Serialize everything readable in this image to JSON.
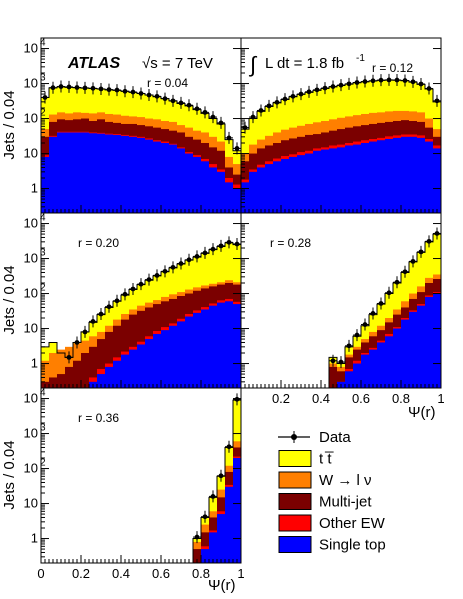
{
  "chart_data": {
    "type": "bar",
    "experiment_label": "ATLAS",
    "energy_label": "√s = 7 TeV",
    "lumi_prefix": "∫",
    "lumi_label": "L dt = 1.8 fb",
    "lumi_superscript": "-1",
    "ylabel": "Jets / 0.04",
    "xlabel": "Ψ(r)",
    "y_log_scale": true,
    "x_range": [
      0,
      1
    ],
    "y_range": [
      0.2,
      20000
    ],
    "x_tick_labels": [
      "0",
      "0.2",
      "0.4",
      "0.6",
      "0.8",
      "1"
    ],
    "y_tick_labels": [
      "1",
      "10",
      "10",
      "10",
      "10"
    ],
    "y_tick_exponents": [
      "",
      "",
      "2",
      "3",
      "4"
    ],
    "colors": {
      "ttbar": "#ffff00",
      "wlnu": "#ff7f00",
      "multijet": "#7b0000",
      "otherew": "#ff0000",
      "singletop": "#0000ff"
    },
    "legend": [
      {
        "key": "data",
        "label": "Data"
      },
      {
        "key": "ttbar",
        "label": "t t̅"
      },
      {
        "key": "wlnu",
        "label": "W → l ν"
      },
      {
        "key": "multijet",
        "label": "Multi-jet"
      },
      {
        "key": "otherew",
        "label": "Other EW"
      },
      {
        "key": "singletop",
        "label": "Single top"
      }
    ],
    "panels": [
      {
        "r_label": "r = 0.04",
        "bins": [
          0.04,
          0.08,
          0.12,
          0.16,
          0.2,
          0.24,
          0.28,
          0.32,
          0.36,
          0.4,
          0.44,
          0.48,
          0.52,
          0.56,
          0.6,
          0.64,
          0.68,
          0.72,
          0.76,
          0.8,
          0.84,
          0.88,
          0.92,
          0.96,
          1.0
        ],
        "singletop": [
          8,
          30,
          40,
          40,
          40,
          40,
          38,
          37,
          35,
          34,
          32,
          30,
          28,
          25,
          22,
          20,
          18,
          14,
          10,
          8,
          6,
          4,
          3,
          1.5,
          1.0
        ],
        "otherew": [
          9,
          32,
          42,
          42,
          42,
          42,
          40,
          39,
          37,
          36,
          34,
          32,
          30,
          27,
          24,
          22,
          19,
          15,
          11,
          9,
          7,
          5,
          3.5,
          2.0,
          1.3
        ],
        "multijet": [
          30,
          80,
          95,
          90,
          95,
          100,
          85,
          95,
          80,
          75,
          70,
          70,
          65,
          60,
          55,
          50,
          45,
          40,
          30,
          25,
          20,
          15,
          12,
          4,
          2.5
        ],
        "wlnu": [
          50,
          130,
          150,
          140,
          150,
          145,
          140,
          150,
          135,
          130,
          120,
          115,
          110,
          100,
          95,
          85,
          80,
          65,
          55,
          45,
          40,
          30,
          22,
          8,
          5
        ],
        "ttbar": [
          400,
          750,
          800,
          780,
          760,
          740,
          720,
          700,
          660,
          640,
          600,
          560,
          520,
          470,
          420,
          370,
          320,
          270,
          230,
          180,
          140,
          100,
          70,
          25,
          12
        ],
        "data": [
          400,
          760,
          820,
          800,
          770,
          750,
          730,
          700,
          670,
          650,
          600,
          570,
          520,
          470,
          430,
          370,
          320,
          280,
          240,
          190,
          150,
          110,
          75,
          28,
          14
        ]
      },
      {
        "r_label": "r = 0.12",
        "bins": [
          0.04,
          0.08,
          0.12,
          0.16,
          0.2,
          0.24,
          0.28,
          0.32,
          0.36,
          0.4,
          0.44,
          0.48,
          0.52,
          0.56,
          0.6,
          0.64,
          0.68,
          0.72,
          0.76,
          0.8,
          0.84,
          0.88,
          0.92,
          0.96,
          1.0
        ],
        "singletop": [
          1.5,
          3,
          4,
          5,
          6,
          7,
          8,
          9,
          10,
          12,
          13,
          14,
          15,
          17,
          18,
          20,
          22,
          24,
          26,
          28,
          30,
          30,
          28,
          22,
          14
        ],
        "otherew": [
          1.8,
          3.5,
          4.8,
          6,
          7.2,
          8.5,
          9.5,
          11,
          12,
          14,
          15,
          17,
          18,
          20,
          22,
          24,
          26,
          28,
          31,
          33,
          35,
          35,
          33,
          26,
          17
        ],
        "multijet": [
          6,
          10,
          14,
          17,
          20,
          24,
          27,
          30,
          34,
          36,
          40,
          45,
          50,
          55,
          60,
          65,
          70,
          75,
          80,
          85,
          90,
          85,
          80,
          55,
          30
        ],
        "wlnu": [
          10,
          18,
          25,
          32,
          40,
          48,
          55,
          62,
          70,
          78,
          85,
          95,
          105,
          115,
          125,
          135,
          145,
          150,
          160,
          165,
          165,
          160,
          150,
          100,
          50
        ],
        "ttbar": [
          50,
          100,
          160,
          220,
          280,
          350,
          420,
          490,
          560,
          640,
          720,
          800,
          880,
          960,
          1050,
          1120,
          1180,
          1230,
          1250,
          1240,
          1200,
          1100,
          950,
          700,
          300
        ],
        "data": [
          55,
          110,
          170,
          230,
          290,
          360,
          430,
          500,
          580,
          660,
          740,
          820,
          900,
          980,
          1070,
          1140,
          1200,
          1250,
          1270,
          1260,
          1220,
          1120,
          970,
          720,
          320
        ]
      },
      {
        "r_label": "r = 0.20",
        "bins": [
          0.04,
          0.08,
          0.12,
          0.16,
          0.2,
          0.24,
          0.28,
          0.32,
          0.36,
          0.4,
          0.44,
          0.48,
          0.52,
          0.56,
          0.6,
          0.64,
          0.68,
          0.72,
          0.76,
          0.8,
          0.84,
          0.88,
          0.92,
          0.96,
          1.0
        ],
        "singletop": [
          0.2,
          0.2,
          0.2,
          0.2,
          0.2,
          0.2,
          0.3,
          0.5,
          0.8,
          1.2,
          1.8,
          2.5,
          3.5,
          5,
          7,
          9,
          12,
          16,
          22,
          28,
          35,
          45,
          55,
          60,
          50
        ],
        "otherew": [
          0.2,
          0.2,
          0.2,
          0.2,
          0.2,
          0.2,
          0.4,
          0.7,
          1.0,
          1.5,
          2.2,
          3.0,
          4.2,
          6,
          8.5,
          11,
          14,
          19,
          26,
          33,
          41,
          52,
          64,
          70,
          58
        ],
        "multijet": [
          0.3,
          0.4,
          0.5,
          0.8,
          1.2,
          2,
          3,
          5,
          8,
          12,
          18,
          25,
          32,
          40,
          50,
          60,
          70,
          85,
          100,
          120,
          140,
          160,
          180,
          200,
          180
        ],
        "wlnu": [
          1.2,
          2,
          2.5,
          3,
          3.8,
          4.5,
          6,
          8,
          12,
          18,
          26,
          35,
          45,
          55,
          65,
          80,
          95,
          110,
          130,
          150,
          170,
          190,
          210,
          240,
          210
        ],
        "ttbar": [
          3,
          4,
          2,
          1.5,
          4,
          8,
          15,
          25,
          40,
          60,
          90,
          130,
          180,
          240,
          320,
          420,
          540,
          700,
          900,
          1100,
          1400,
          1800,
          2200,
          2800,
          2500
        ],
        "data": [
          null,
          null,
          null,
          1.5,
          4,
          8,
          16,
          26,
          42,
          62,
          95,
          135,
          185,
          250,
          330,
          430,
          560,
          720,
          920,
          1150,
          1450,
          1850,
          2300,
          2900,
          2600
        ]
      },
      {
        "r_label": "r = 0.28",
        "bins": [
          0.48,
          0.52,
          0.56,
          0.6,
          0.64,
          0.68,
          0.72,
          0.76,
          0.8,
          0.84,
          0.88,
          0.92,
          0.96,
          1.0
        ],
        "singletop": [
          0.2,
          0.3,
          0.6,
          1.0,
          1.8,
          2.5,
          4,
          6,
          10,
          18,
          30,
          45,
          80,
          100
        ],
        "otherew": [
          0.2,
          0.3,
          0.7,
          1.2,
          2.0,
          2.8,
          4.5,
          7,
          11,
          20,
          33,
          50,
          88,
          110
        ],
        "multijet": [
          0.8,
          0.6,
          1.5,
          2.5,
          4,
          6,
          9,
          15,
          25,
          40,
          70,
          110,
          200,
          260
        ],
        "wlnu": [
          1.0,
          0.8,
          1.8,
          3,
          5,
          8,
          12,
          20,
          35,
          60,
          100,
          160,
          280,
          350
        ],
        "ttbar": [
          1.5,
          1.0,
          3,
          6,
          12,
          25,
          50,
          100,
          200,
          400,
          800,
          1500,
          3000,
          5000
        ],
        "data": [
          1.2,
          1.1,
          3.2,
          6.5,
          13,
          27,
          52,
          105,
          210,
          420,
          830,
          1550,
          3100,
          5200
        ]
      },
      {
        "r_label": "r = 0.36",
        "bins": [
          0.8,
          0.84,
          0.88,
          0.92,
          0.96,
          1.0
        ],
        "singletop": [
          0.2,
          0.5,
          1.5,
          5,
          30,
          200
        ],
        "otherew": [
          0.2,
          0.6,
          1.7,
          6,
          34,
          220
        ],
        "multijet": [
          0.5,
          1.5,
          4,
          15,
          80,
          400
        ],
        "wlnu": [
          0.8,
          2.5,
          6,
          25,
          120,
          600
        ],
        "ttbar": [
          1.0,
          4,
          15,
          60,
          400,
          9000
        ],
        "data": [
          1.1,
          4.2,
          16,
          62,
          420,
          9500
        ]
      }
    ]
  }
}
